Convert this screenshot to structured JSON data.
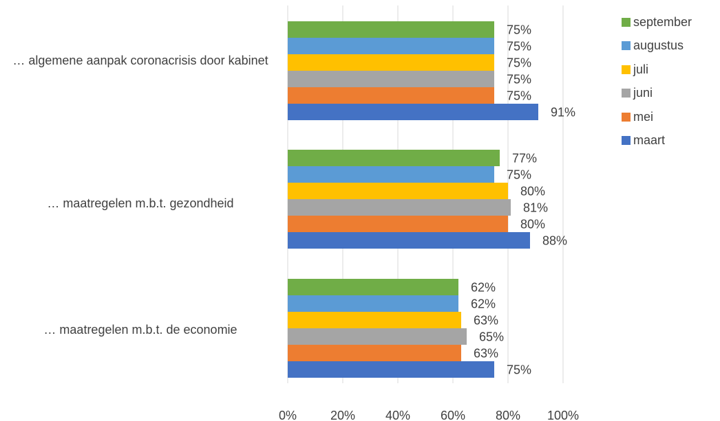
{
  "chart_data": {
    "type": "bar",
    "orientation": "horizontal",
    "categories": [
      "… algemene aanpak coronacrisis door kabinet",
      "… maatregelen m.b.t. gezondheid",
      "… maatregelen m.b.t. de economie"
    ],
    "series": [
      {
        "name": "september",
        "color": "#70AD47",
        "values": [
          75,
          77,
          62
        ]
      },
      {
        "name": "augustus",
        "color": "#5B9BD5",
        "values": [
          75,
          75,
          62
        ]
      },
      {
        "name": "juli",
        "color": "#FFC000",
        "values": [
          75,
          80,
          63
        ]
      },
      {
        "name": "juni",
        "color": "#A5A5A5",
        "values": [
          75,
          81,
          65
        ]
      },
      {
        "name": "mei",
        "color": "#ED7D31",
        "values": [
          75,
          80,
          63
        ]
      },
      {
        "name": "maart",
        "color": "#4472C4",
        "values": [
          91,
          88,
          75
        ]
      }
    ],
    "value_suffix": "%",
    "xlim": [
      0,
      100
    ],
    "xticks": [
      "0%",
      "20%",
      "40%",
      "60%",
      "80%",
      "100%"
    ],
    "grid": true,
    "legend_position": "right"
  }
}
